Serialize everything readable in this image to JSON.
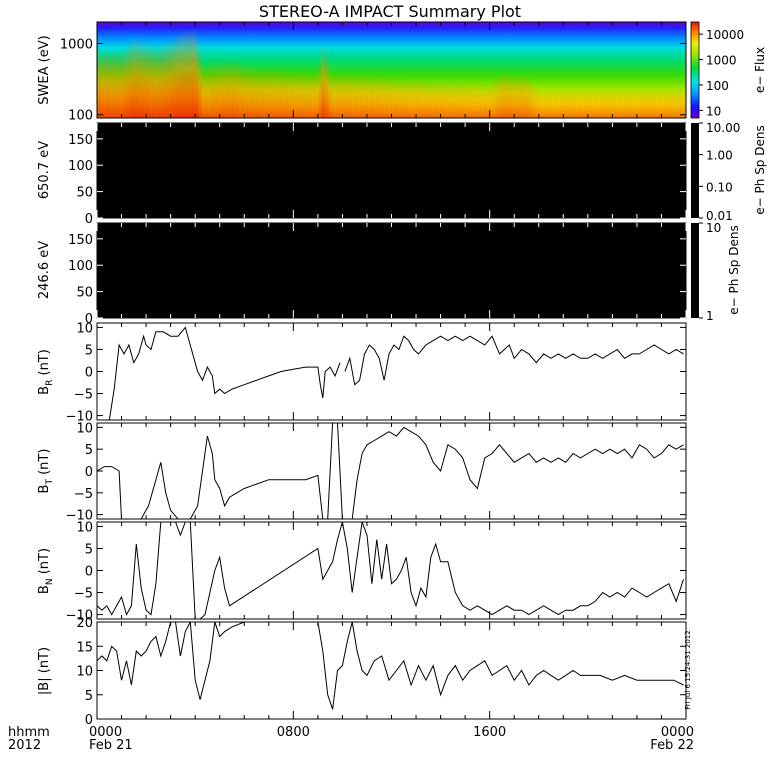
{
  "title": "STEREO-A IMPACT Summary Plot",
  "x_axis": {
    "row1_label": "hhmm",
    "row2_label": "2012",
    "ticks": [
      {
        "hour": 0,
        "label": "0000",
        "date": "Feb 21"
      },
      {
        "hour": 8,
        "label": "0800",
        "date": ""
      },
      {
        "hour": 16,
        "label": "1600",
        "date": ""
      },
      {
        "hour": 24,
        "label": "0000",
        "date": "Feb 22"
      }
    ],
    "range_hours": [
      0,
      24
    ]
  },
  "timestamp": "Fri Jul  6 15:24:31 2012",
  "colors": {
    "black_panel": "#000000",
    "line": "#000000"
  },
  "chart_data": [
    {
      "type": "heatmap",
      "ylabel": "SWEA (eV)",
      "y_scale": "log",
      "ylim": [
        90,
        2000
      ],
      "yticks": [
        {
          "value": 100,
          "label": "100"
        },
        {
          "value": 1000,
          "label": "1000"
        }
      ],
      "colorbar": {
        "label": "e− Flux",
        "scale": "log",
        "range": [
          5,
          30000
        ],
        "ticks": [
          {
            "value": 10000,
            "label": "10000"
          },
          {
            "value": 1000,
            "label": "1000"
          },
          {
            "value": 100,
            "label": "100"
          },
          {
            "value": 10,
            "label": "10"
          }
        ]
      },
      "low_energy_intensity_profile": {
        "hours": [
          0,
          1,
          1.5,
          2.4,
          3,
          3.5,
          4,
          4.3,
          5.5,
          6,
          9,
          9.2,
          9.6,
          10,
          13,
          16,
          16.5,
          17.5,
          18,
          20,
          24
        ],
        "values": [
          0.72,
          0.7,
          0.85,
          0.75,
          0.82,
          0.92,
          0.95,
          0.55,
          0.62,
          0.55,
          0.48,
          0.8,
          0.45,
          0.48,
          0.4,
          0.35,
          0.48,
          0.45,
          0.3,
          0.3,
          0.3
        ]
      }
    },
    {
      "type": "heatmap",
      "ylabel": "650.7 eV",
      "ylim": [
        0,
        180
      ],
      "yticks": [
        {
          "value": 0,
          "label": "0"
        },
        {
          "value": 50,
          "label": "50"
        },
        {
          "value": 100,
          "label": "100"
        },
        {
          "value": 150,
          "label": "150"
        }
      ],
      "colorbar": {
        "label": "e− Ph Sp Dens",
        "scale": "log",
        "range": [
          0.01,
          10
        ],
        "ticks": [
          {
            "value": 10,
            "label": "10.00"
          },
          {
            "value": 1,
            "label": "1.00"
          },
          {
            "value": 0.1,
            "label": "0.10"
          },
          {
            "value": 0.01,
            "label": "0.01"
          }
        ]
      }
    },
    {
      "type": "heatmap",
      "ylabel": "246.6 eV",
      "ylim": [
        0,
        180
      ],
      "yticks": [
        {
          "value": 0,
          "label": "0"
        },
        {
          "value": 50,
          "label": "50"
        },
        {
          "value": 100,
          "label": "100"
        },
        {
          "value": 150,
          "label": "150"
        }
      ],
      "colorbar": {
        "label": "e− Ph Sp Dens",
        "scale": "log",
        "range": [
          1,
          10
        ],
        "ticks": [
          {
            "value": 10,
            "label": "10"
          },
          {
            "value": 1,
            "label": "1"
          }
        ]
      }
    },
    {
      "type": "line",
      "ylabel": "B",
      "ysub": "R",
      "yunit": " (nT)",
      "ylim": [
        -11,
        11
      ],
      "yticks": [
        {
          "value": -10,
          "label": "−10"
        },
        {
          "value": -5,
          "label": "−5"
        },
        {
          "value": 0,
          "label": "0"
        },
        {
          "value": 5,
          "label": "5"
        },
        {
          "value": 10,
          "label": "10"
        }
      ],
      "x": [
        0.5,
        0.7,
        0.9,
        1.1,
        1.3,
        1.5,
        1.7,
        1.9,
        2.0,
        2.2,
        2.4,
        2.7,
        3.0,
        3.3,
        3.6,
        3.9,
        4.1,
        4.3,
        4.5,
        4.7,
        4.8,
        5.0,
        5.2,
        5.5,
        6.0,
        6.5,
        7.0,
        7.5,
        8.0,
        8.5,
        9.0,
        9.1,
        9.2,
        9.3,
        9.5,
        9.7,
        9.9,
        10.1,
        10.3,
        10.5,
        10.7,
        10.9,
        11.1,
        11.3,
        11.5,
        11.7,
        11.9,
        12.1,
        12.3,
        12.5,
        12.7,
        12.9,
        13.1,
        13.4,
        13.7,
        14.0,
        14.3,
        14.6,
        14.9,
        15.2,
        15.5,
        15.8,
        16.1,
        16.4,
        16.6,
        16.8,
        17.0,
        17.3,
        17.6,
        17.9,
        18.2,
        18.5,
        18.8,
        19.1,
        19.4,
        19.7,
        20.0,
        20.3,
        20.6,
        20.9,
        21.2,
        21.5,
        21.8,
        22.1,
        22.4,
        22.7,
        23.0,
        23.3,
        23.6,
        23.9
      ],
      "values": [
        -11,
        -4,
        6,
        4,
        6,
        2,
        4,
        8,
        6,
        5,
        9,
        9,
        8,
        8,
        10,
        4,
        0,
        -2,
        1,
        -1,
        -5,
        -4,
        -5,
        -4,
        -3,
        -2,
        -1,
        0,
        0.5,
        1,
        1,
        -3,
        -6,
        0,
        1,
        -1,
        2,
        0,
        3,
        -3,
        -2,
        4,
        6,
        5,
        3,
        -2,
        4,
        6,
        5,
        8,
        7,
        5,
        4,
        6,
        7,
        8,
        7,
        8,
        7,
        8,
        7,
        6,
        8,
        4,
        5,
        6,
        3,
        5,
        4,
        2,
        4,
        3,
        4,
        3,
        4,
        3,
        3,
        4,
        3,
        4,
        5,
        3,
        4,
        4,
        5,
        6,
        5,
        4,
        5,
        4
      ],
      "gaps": [
        [
          9.0,
          9.2
        ],
        [
          10.0,
          10.1
        ]
      ]
    },
    {
      "type": "line",
      "ylabel": "B",
      "ysub": "T",
      "yunit": " (nT)",
      "ylim": [
        -11,
        11
      ],
      "yticks": [
        {
          "value": -10,
          "label": "−10"
        },
        {
          "value": -5,
          "label": "−5"
        },
        {
          "value": 0,
          "label": "0"
        },
        {
          "value": 5,
          "label": "5"
        },
        {
          "value": 10,
          "label": "10"
        }
      ],
      "x": [
        0,
        0.3,
        0.6,
        0.9,
        1.0,
        1.2,
        1.5,
        1.8,
        2.1,
        2.4,
        2.6,
        2.8,
        3.0,
        3.3,
        3.5,
        3.8,
        4.1,
        4.3,
        4.5,
        4.7,
        4.8,
        5.0,
        5.2,
        5.4,
        5.7,
        6.0,
        6.5,
        7.0,
        7.5,
        8.0,
        8.5,
        9.0,
        9.2,
        9.4,
        9.6,
        9.8,
        10.0,
        10.2,
        10.4,
        10.6,
        10.8,
        11.0,
        11.3,
        11.6,
        11.9,
        12.2,
        12.5,
        12.8,
        13.1,
        13.4,
        13.7,
        14.0,
        14.3,
        14.6,
        14.9,
        15.2,
        15.5,
        15.8,
        16.1,
        16.4,
        16.7,
        17.0,
        17.3,
        17.6,
        17.9,
        18.2,
        18.5,
        18.8,
        19.1,
        19.4,
        19.7,
        20.0,
        20.3,
        20.6,
        20.9,
        21.2,
        21.5,
        21.8,
        22.1,
        22.4,
        22.7,
        23.0,
        23.3,
        23.6,
        23.9
      ],
      "values": [
        0,
        1,
        1,
        0,
        -11,
        -11,
        -11,
        -11,
        -8,
        -2,
        2,
        -5,
        -9,
        -11,
        -11,
        -11,
        -8,
        0,
        8,
        4,
        -2,
        -4,
        -8,
        -6,
        -5,
        -4,
        -3,
        -2,
        -2,
        -2,
        -2,
        -1,
        -11,
        -11,
        11,
        11,
        -11,
        -11,
        -11,
        -2,
        4,
        6,
        7,
        8,
        9,
        8,
        10,
        9,
        8,
        6,
        2,
        0,
        6,
        5,
        3,
        -2,
        -4,
        3,
        4,
        6,
        4,
        2,
        3,
        4,
        2,
        3,
        2,
        3,
        2,
        4,
        3,
        4,
        5,
        4,
        5,
        4,
        5,
        3,
        6,
        5,
        3,
        4,
        6,
        5,
        6
      ],
      "gaps": []
    },
    {
      "type": "line",
      "ylabel": "B",
      "ysub": "N",
      "yunit": " (nT)",
      "ylim": [
        -11,
        11
      ],
      "yticks": [
        {
          "value": -10,
          "label": "−10"
        },
        {
          "value": -5,
          "label": "−5"
        },
        {
          "value": 0,
          "label": "0"
        },
        {
          "value": 5,
          "label": "5"
        },
        {
          "value": 10,
          "label": "10"
        }
      ],
      "x": [
        0,
        0.2,
        0.4,
        0.6,
        0.8,
        1.0,
        1.2,
        1.4,
        1.6,
        1.8,
        2.0,
        2.2,
        2.4,
        2.6,
        2.8,
        3.0,
        3.2,
        3.4,
        3.6,
        3.8,
        4.0,
        4.2,
        4.4,
        4.6,
        4.8,
        5.0,
        5.2,
        5.4,
        9.0,
        9.2,
        9.4,
        9.6,
        9.8,
        10.0,
        10.2,
        10.4,
        10.6,
        10.8,
        11.0,
        11.2,
        11.4,
        11.6,
        11.8,
        12.0,
        12.2,
        12.4,
        12.6,
        12.8,
        13.0,
        13.2,
        13.4,
        13.6,
        13.8,
        14.0,
        14.3,
        14.6,
        14.9,
        15.2,
        15.5,
        15.8,
        16.1,
        16.4,
        16.7,
        17.0,
        17.3,
        17.6,
        17.9,
        18.2,
        18.5,
        18.8,
        19.1,
        19.4,
        19.7,
        20.0,
        20.3,
        20.6,
        20.9,
        21.2,
        21.5,
        21.8,
        22.1,
        22.4,
        22.7,
        23.0,
        23.3,
        23.6,
        23.9
      ],
      "values": [
        -8,
        -9,
        -8,
        -10,
        -8,
        -6,
        -10,
        -8,
        6,
        -4,
        -9,
        -10,
        -3,
        11,
        11,
        11,
        11,
        8,
        11,
        11,
        -11,
        -11,
        -10,
        -5,
        0,
        3,
        -4,
        -8,
        5,
        -2,
        0,
        2,
        7,
        11,
        5,
        -5,
        3,
        11,
        8,
        -3,
        7,
        -2,
        6,
        -3,
        -2,
        0,
        3,
        -5,
        -8,
        -4,
        -6,
        3,
        6,
        2,
        2,
        -5,
        -8,
        -9,
        -8,
        -9,
        -10,
        -9,
        -8,
        -9,
        -9,
        -10,
        -9,
        -8,
        -9,
        -10,
        -9,
        -9,
        -8,
        -8,
        -7,
        -5,
        -6,
        -5,
        -6,
        -4,
        -5,
        -6,
        -5,
        -4,
        -3,
        -7,
        -2
      ]
    },
    {
      "type": "line",
      "ylabel": "|B|",
      "ysub": "",
      "yunit": " (nT)",
      "ylim": [
        0,
        20
      ],
      "yticks": [
        {
          "value": 0,
          "label": "0"
        },
        {
          "value": 5,
          "label": "5"
        },
        {
          "value": 10,
          "label": "10"
        },
        {
          "value": 15,
          "label": "15"
        },
        {
          "value": 20,
          "label": "20"
        }
      ],
      "x": [
        0,
        0.2,
        0.4,
        0.6,
        0.8,
        1.0,
        1.2,
        1.4,
        1.6,
        1.8,
        2.0,
        2.2,
        2.4,
        2.6,
        2.8,
        3.0,
        3.2,
        3.4,
        3.6,
        3.8,
        4.0,
        4.2,
        4.4,
        4.6,
        4.8,
        5.0,
        5.2,
        5.5,
        6.0,
        6.5,
        9.0,
        9.2,
        9.4,
        9.6,
        9.8,
        10.0,
        10.2,
        10.4,
        10.6,
        10.8,
        11.0,
        11.3,
        11.6,
        11.9,
        12.2,
        12.5,
        12.8,
        13.1,
        13.4,
        13.7,
        14.0,
        14.3,
        14.6,
        14.9,
        15.2,
        15.5,
        15.8,
        16.1,
        16.4,
        16.7,
        17.0,
        17.3,
        17.6,
        17.9,
        18.2,
        18.5,
        18.8,
        19.1,
        19.4,
        19.7,
        20.0,
        20.5,
        21.0,
        21.5,
        22.0,
        22.5,
        23.0,
        23.5,
        23.9
      ],
      "values": [
        12,
        13,
        12,
        15,
        14,
        8,
        12,
        7,
        14,
        13,
        14,
        16,
        17,
        13,
        16,
        20,
        20,
        13,
        18,
        20,
        8,
        4,
        8,
        12,
        20,
        17,
        18,
        19,
        20,
        20,
        20,
        14,
        5,
        2,
        10,
        11,
        16,
        20,
        14,
        10,
        9,
        12,
        13,
        8,
        10,
        12,
        7,
        11,
        8,
        11,
        5,
        9,
        11,
        8,
        10,
        11,
        12,
        9,
        10,
        11,
        8,
        10,
        7,
        9,
        10,
        9,
        8,
        9,
        10,
        9,
        9,
        9,
        8,
        9,
        8,
        8,
        8,
        8,
        7
      ]
    }
  ]
}
